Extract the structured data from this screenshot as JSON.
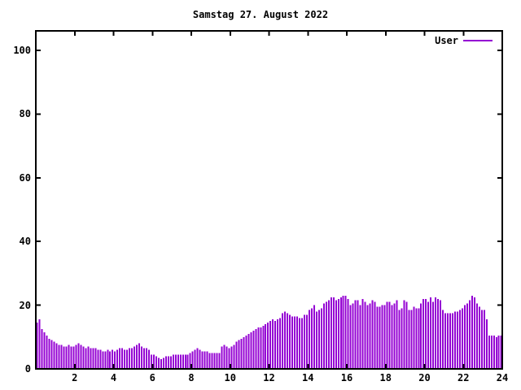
{
  "title": "Samstag 27. August 2022",
  "legend": {
    "label": "User",
    "position": "top-right"
  },
  "colors": {
    "bar": "#9400d3",
    "axis": "#000000",
    "background": "#ffffff",
    "text": "#000000"
  },
  "chart_data": {
    "type": "bar",
    "title": "Samstag 27. August 2022",
    "xlabel": "",
    "ylabel": "",
    "x_unit": "hour of day",
    "points_per_hour": 8,
    "interval_minutes": 7.5,
    "xlim": [
      0,
      24
    ],
    "ylim": [
      0,
      106
    ],
    "x_ticks": [
      2,
      4,
      6,
      8,
      10,
      12,
      14,
      16,
      18,
      20,
      22,
      24
    ],
    "y_ticks": [
      0,
      20,
      40,
      60,
      80,
      100
    ],
    "grid": false,
    "legend_position": "top-right-inside",
    "series": [
      {
        "name": "User",
        "color": "#9400d3",
        "values": [
          14.5,
          15.5,
          12.5,
          11.5,
          10.5,
          9.5,
          9,
          8.5,
          8,
          7.5,
          7.5,
          7,
          7,
          7.5,
          7,
          7,
          7.5,
          8,
          7.5,
          7,
          6.5,
          7,
          6.5,
          6.5,
          6.5,
          6,
          6,
          5.5,
          5.5,
          6,
          5.5,
          6,
          5.5,
          6,
          6.5,
          6.5,
          6,
          6,
          6.5,
          6.5,
          7,
          7.5,
          8,
          7,
          6.5,
          6.5,
          6,
          4.5,
          4.5,
          4,
          3.5,
          3,
          3.5,
          4,
          4,
          4,
          4.5,
          4.5,
          4.5,
          4.5,
          4.5,
          4.5,
          4.5,
          5,
          5.5,
          6,
          6.5,
          6,
          5.5,
          5.5,
          5.5,
          5,
          5,
          5,
          5,
          5,
          7,
          7.5,
          7,
          6.5,
          7,
          7.5,
          8.5,
          9,
          9.5,
          10,
          10.5,
          11,
          11.5,
          12,
          12.5,
          13,
          13,
          13.5,
          14,
          14.5,
          15,
          15.5,
          15,
          15.5,
          16,
          17.5,
          18,
          17.5,
          17,
          16.5,
          16.5,
          16.5,
          16,
          16,
          17,
          17,
          18.5,
          19,
          20,
          18,
          18.5,
          19,
          20.5,
          21,
          21.5,
          22.5,
          22.5,
          21.5,
          22,
          22.5,
          23,
          23,
          22,
          20,
          20.5,
          21.5,
          21.5,
          20,
          22,
          21,
          20,
          20.5,
          21.5,
          21,
          19.5,
          19.5,
          20,
          20,
          21,
          21,
          20,
          20.5,
          21.5,
          18.5,
          19,
          21.5,
          21,
          18.5,
          18.5,
          19.5,
          19,
          19,
          20.5,
          22,
          22,
          21,
          22.5,
          21,
          22.5,
          22,
          21.5,
          18.5,
          17.5,
          17.5,
          17.5,
          17.5,
          18,
          18,
          18.5,
          19,
          20,
          20.5,
          21.5,
          23,
          22.5,
          20.5,
          19.5,
          18.5,
          18.5,
          15.5,
          10.5,
          10.5,
          10.5,
          10,
          10.5,
          10.5
        ]
      }
    ]
  }
}
